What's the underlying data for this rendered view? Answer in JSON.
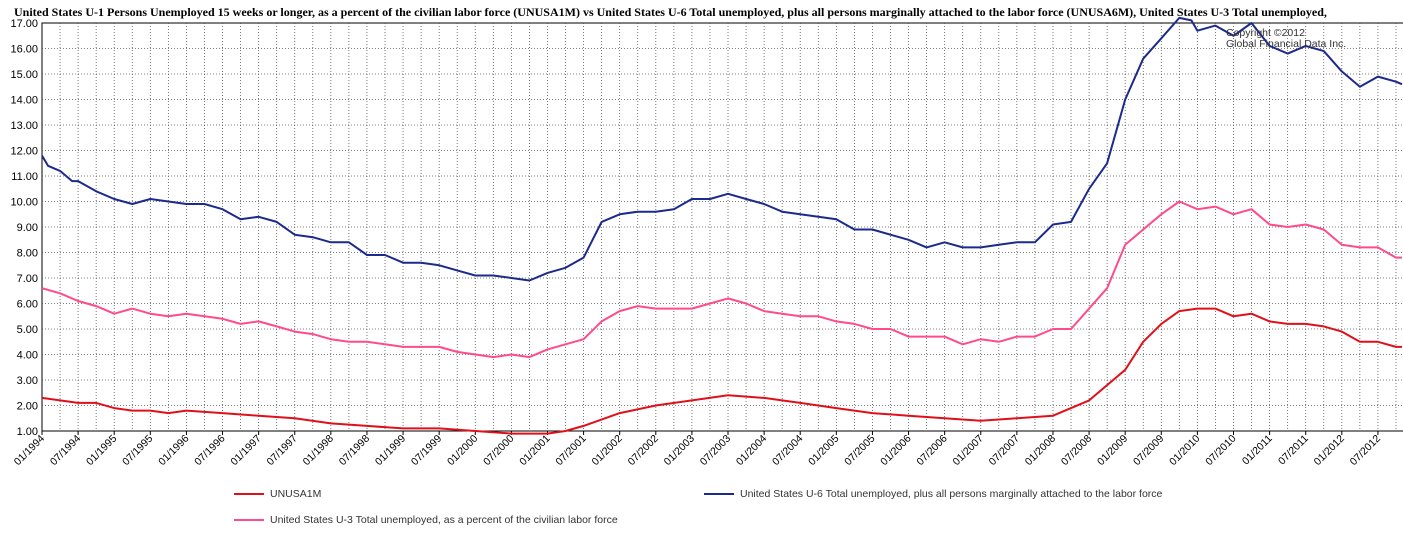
{
  "chart_data": {
    "type": "line",
    "title": "United States U-1 Persons Unemployed 15 weeks or longer, as a percent of the civilian labor force (UNUSA1M)  vs  United States U-6 Total unemployed, plus all persons marginally attached to the labor force (UNUSA6M), United States U-3 Total unemployed,",
    "copyright": [
      "Copyright ©2012",
      "Global Financial Data Inc."
    ],
    "ylim": [
      1.0,
      17.0
    ],
    "y_ticks": [
      "1.00",
      "2.00",
      "3.00",
      "4.00",
      "5.00",
      "6.00",
      "7.00",
      "8.00",
      "9.00",
      "10.00",
      "11.00",
      "12.00",
      "13.00",
      "14.00",
      "15.00",
      "16.00",
      "17.00"
    ],
    "x_ticks": [
      "01/1994",
      "07/1994",
      "01/1995",
      "07/1995",
      "01/1996",
      "07/1996",
      "01/1997",
      "07/1997",
      "01/1998",
      "07/1998",
      "01/1999",
      "07/1999",
      "01/2000",
      "07/2000",
      "01/2001",
      "07/2001",
      "01/2002",
      "07/2002",
      "01/2003",
      "07/2003",
      "01/2004",
      "07/2004",
      "01/2005",
      "07/2005",
      "01/2006",
      "07/2006",
      "01/2007",
      "07/2007",
      "01/2008",
      "07/2008",
      "01/2009",
      "07/2009",
      "01/2010",
      "07/2010",
      "01/2011",
      "07/2011",
      "01/2012",
      "07/2012"
    ],
    "grid": true,
    "legend_position": "bottom",
    "series": [
      {
        "name": "UNUSA1M",
        "color": "#e0101a",
        "points": [
          [
            "01/1994",
            2.3
          ],
          [
            "04/1994",
            2.2
          ],
          [
            "07/1994",
            2.1
          ],
          [
            "10/1994",
            2.1
          ],
          [
            "01/1995",
            1.9
          ],
          [
            "04/1995",
            1.8
          ],
          [
            "07/1995",
            1.8
          ],
          [
            "10/1995",
            1.7
          ],
          [
            "01/1996",
            1.8
          ],
          [
            "07/1996",
            1.7
          ],
          [
            "01/1997",
            1.6
          ],
          [
            "07/1997",
            1.5
          ],
          [
            "01/1998",
            1.3
          ],
          [
            "07/1998",
            1.2
          ],
          [
            "01/1999",
            1.1
          ],
          [
            "07/1999",
            1.1
          ],
          [
            "01/2000",
            1.0
          ],
          [
            "07/2000",
            0.9
          ],
          [
            "01/2001",
            0.9
          ],
          [
            "04/2001",
            1.0
          ],
          [
            "07/2001",
            1.2
          ],
          [
            "01/2002",
            1.7
          ],
          [
            "07/2002",
            2.0
          ],
          [
            "01/2003",
            2.2
          ],
          [
            "07/2003",
            2.4
          ],
          [
            "01/2004",
            2.3
          ],
          [
            "07/2004",
            2.1
          ],
          [
            "01/2005",
            1.9
          ],
          [
            "07/2005",
            1.7
          ],
          [
            "01/2006",
            1.6
          ],
          [
            "07/2006",
            1.5
          ],
          [
            "01/2007",
            1.4
          ],
          [
            "07/2007",
            1.5
          ],
          [
            "01/2008",
            1.6
          ],
          [
            "07/2008",
            2.2
          ],
          [
            "01/2009",
            3.4
          ],
          [
            "04/2009",
            4.5
          ],
          [
            "07/2009",
            5.2
          ],
          [
            "10/2009",
            5.7
          ],
          [
            "01/2010",
            5.8
          ],
          [
            "04/2010",
            5.8
          ],
          [
            "07/2010",
            5.5
          ],
          [
            "10/2010",
            5.6
          ],
          [
            "01/2011",
            5.3
          ],
          [
            "04/2011",
            5.2
          ],
          [
            "07/2011",
            5.2
          ],
          [
            "10/2011",
            5.1
          ],
          [
            "01/2012",
            4.9
          ],
          [
            "04/2012",
            4.5
          ],
          [
            "07/2012",
            4.5
          ],
          [
            "10/2012",
            4.3
          ],
          [
            "11/2012",
            4.3
          ]
        ]
      },
      {
        "name": "United States U-6 Total unemployed, plus all persons marginally attached to the labor force",
        "color": "#1c2a8c",
        "points": [
          [
            "01/1994",
            11.8
          ],
          [
            "02/1994",
            11.4
          ],
          [
            "04/1994",
            11.2
          ],
          [
            "06/1994",
            10.8
          ],
          [
            "07/1994",
            10.8
          ],
          [
            "10/1994",
            10.4
          ],
          [
            "01/1995",
            10.1
          ],
          [
            "04/1995",
            9.9
          ],
          [
            "07/1995",
            10.1
          ],
          [
            "10/1995",
            10.0
          ],
          [
            "01/1996",
            9.9
          ],
          [
            "04/1996",
            9.9
          ],
          [
            "07/1996",
            9.7
          ],
          [
            "10/1996",
            9.3
          ],
          [
            "01/1997",
            9.4
          ],
          [
            "04/1997",
            9.2
          ],
          [
            "07/1997",
            8.7
          ],
          [
            "10/1997",
            8.6
          ],
          [
            "01/1998",
            8.4
          ],
          [
            "04/1998",
            8.4
          ],
          [
            "07/1998",
            7.9
          ],
          [
            "10/1998",
            7.9
          ],
          [
            "01/1999",
            7.6
          ],
          [
            "04/1999",
            7.6
          ],
          [
            "07/1999",
            7.5
          ],
          [
            "10/1999",
            7.3
          ],
          [
            "01/2000",
            7.1
          ],
          [
            "04/2000",
            7.1
          ],
          [
            "07/2000",
            7.0
          ],
          [
            "10/2000",
            6.9
          ],
          [
            "01/2001",
            7.2
          ],
          [
            "04/2001",
            7.4
          ],
          [
            "07/2001",
            7.8
          ],
          [
            "10/2001",
            9.2
          ],
          [
            "01/2002",
            9.5
          ],
          [
            "04/2002",
            9.6
          ],
          [
            "07/2002",
            9.6
          ],
          [
            "10/2002",
            9.7
          ],
          [
            "01/2003",
            10.1
          ],
          [
            "04/2003",
            10.1
          ],
          [
            "07/2003",
            10.3
          ],
          [
            "10/2003",
            10.1
          ],
          [
            "01/2004",
            9.9
          ],
          [
            "04/2004",
            9.6
          ],
          [
            "07/2004",
            9.5
          ],
          [
            "10/2004",
            9.4
          ],
          [
            "01/2005",
            9.3
          ],
          [
            "04/2005",
            8.9
          ],
          [
            "07/2005",
            8.9
          ],
          [
            "10/2005",
            8.7
          ],
          [
            "01/2006",
            8.5
          ],
          [
            "04/2006",
            8.2
          ],
          [
            "07/2006",
            8.4
          ],
          [
            "10/2006",
            8.2
          ],
          [
            "01/2007",
            8.2
          ],
          [
            "04/2007",
            8.3
          ],
          [
            "07/2007",
            8.4
          ],
          [
            "10/2007",
            8.4
          ],
          [
            "01/2008",
            9.1
          ],
          [
            "04/2008",
            9.2
          ],
          [
            "07/2008",
            10.5
          ],
          [
            "10/2008",
            11.5
          ],
          [
            "01/2009",
            14.0
          ],
          [
            "04/2009",
            15.6
          ],
          [
            "07/2009",
            16.4
          ],
          [
            "10/2009",
            17.2
          ],
          [
            "12/2009",
            17.1
          ],
          [
            "01/2010",
            16.7
          ],
          [
            "04/2010",
            16.9
          ],
          [
            "07/2010",
            16.5
          ],
          [
            "10/2010",
            17.0
          ],
          [
            "01/2011",
            16.1
          ],
          [
            "04/2011",
            15.8
          ],
          [
            "07/2011",
            16.1
          ],
          [
            "10/2011",
            15.9
          ],
          [
            "01/2012",
            15.1
          ],
          [
            "04/2012",
            14.5
          ],
          [
            "07/2012",
            14.9
          ],
          [
            "10/2012",
            14.7
          ],
          [
            "11/2012",
            14.6
          ]
        ]
      },
      {
        "name": "United States U-3 Total unemployed, as a percent of the civilian labor force",
        "color": "#ff4b8c",
        "points": [
          [
            "01/1994",
            6.6
          ],
          [
            "04/1994",
            6.4
          ],
          [
            "07/1994",
            6.1
          ],
          [
            "10/1994",
            5.9
          ],
          [
            "01/1995",
            5.6
          ],
          [
            "04/1995",
            5.8
          ],
          [
            "07/1995",
            5.6
          ],
          [
            "10/1995",
            5.5
          ],
          [
            "01/1996",
            5.6
          ],
          [
            "04/1996",
            5.5
          ],
          [
            "07/1996",
            5.4
          ],
          [
            "10/1996",
            5.2
          ],
          [
            "01/1997",
            5.3
          ],
          [
            "04/1997",
            5.1
          ],
          [
            "07/1997",
            4.9
          ],
          [
            "10/1997",
            4.8
          ],
          [
            "01/1998",
            4.6
          ],
          [
            "04/1998",
            4.5
          ],
          [
            "07/1998",
            4.5
          ],
          [
            "10/1998",
            4.4
          ],
          [
            "01/1999",
            4.3
          ],
          [
            "04/1999",
            4.3
          ],
          [
            "07/1999",
            4.3
          ],
          [
            "10/1999",
            4.1
          ],
          [
            "01/2000",
            4.0
          ],
          [
            "04/2000",
            3.9
          ],
          [
            "07/2000",
            4.0
          ],
          [
            "10/2000",
            3.9
          ],
          [
            "01/2001",
            4.2
          ],
          [
            "04/2001",
            4.4
          ],
          [
            "07/2001",
            4.6
          ],
          [
            "10/2001",
            5.3
          ],
          [
            "01/2002",
            5.7
          ],
          [
            "04/2002",
            5.9
          ],
          [
            "07/2002",
            5.8
          ],
          [
            "10/2002",
            5.8
          ],
          [
            "01/2003",
            5.8
          ],
          [
            "04/2003",
            6.0
          ],
          [
            "07/2003",
            6.2
          ],
          [
            "10/2003",
            6.0
          ],
          [
            "01/2004",
            5.7
          ],
          [
            "04/2004",
            5.6
          ],
          [
            "07/2004",
            5.5
          ],
          [
            "10/2004",
            5.5
          ],
          [
            "01/2005",
            5.3
          ],
          [
            "04/2005",
            5.2
          ],
          [
            "07/2005",
            5.0
          ],
          [
            "10/2005",
            5.0
          ],
          [
            "01/2006",
            4.7
          ],
          [
            "04/2006",
            4.7
          ],
          [
            "07/2006",
            4.7
          ],
          [
            "10/2006",
            4.4
          ],
          [
            "01/2007",
            4.6
          ],
          [
            "04/2007",
            4.5
          ],
          [
            "07/2007",
            4.7
          ],
          [
            "10/2007",
            4.7
          ],
          [
            "01/2008",
            5.0
          ],
          [
            "04/2008",
            5.0
          ],
          [
            "07/2008",
            5.8
          ],
          [
            "10/2008",
            6.6
          ],
          [
            "01/2009",
            8.3
          ],
          [
            "04/2009",
            8.9
          ],
          [
            "07/2009",
            9.5
          ],
          [
            "10/2009",
            10.0
          ],
          [
            "01/2010",
            9.7
          ],
          [
            "04/2010",
            9.8
          ],
          [
            "07/2010",
            9.5
          ],
          [
            "10/2010",
            9.7
          ],
          [
            "01/2011",
            9.1
          ],
          [
            "04/2011",
            9.0
          ],
          [
            "07/2011",
            9.1
          ],
          [
            "10/2011",
            8.9
          ],
          [
            "01/2012",
            8.3
          ],
          [
            "04/2012",
            8.2
          ],
          [
            "07/2012",
            8.2
          ],
          [
            "10/2012",
            7.8
          ],
          [
            "11/2012",
            7.8
          ]
        ]
      }
    ]
  }
}
